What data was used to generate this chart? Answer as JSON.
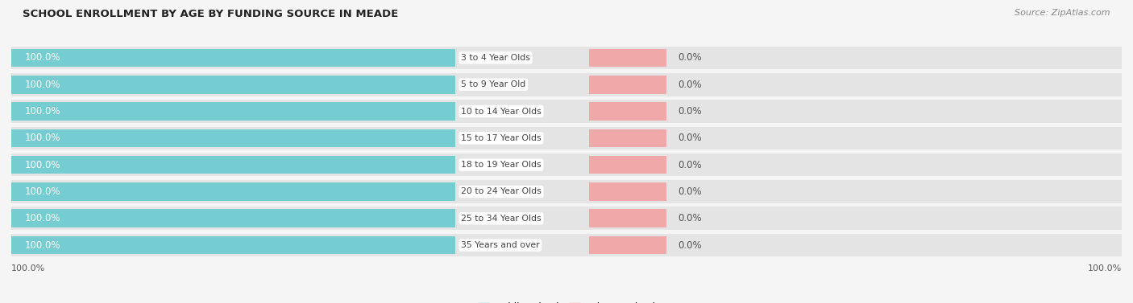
{
  "title": "SCHOOL ENROLLMENT BY AGE BY FUNDING SOURCE IN MEADE",
  "source": "Source: ZipAtlas.com",
  "categories": [
    "3 to 4 Year Olds",
    "5 to 9 Year Old",
    "10 to 14 Year Olds",
    "15 to 17 Year Olds",
    "18 to 19 Year Olds",
    "20 to 24 Year Olds",
    "25 to 34 Year Olds",
    "35 Years and over"
  ],
  "public_values": [
    100.0,
    100.0,
    100.0,
    100.0,
    100.0,
    100.0,
    100.0,
    100.0
  ],
  "private_values": [
    0.0,
    0.0,
    0.0,
    0.0,
    0.0,
    0.0,
    0.0,
    0.0
  ],
  "public_color": "#75cdd1",
  "private_color": "#f0a8a8",
  "row_bg_even": "#e8e8e8",
  "row_bg_odd": "#e8e8e8",
  "public_label_color": "#ffffff",
  "value_label_color": "#555555",
  "category_label_color": "#444444",
  "title_color": "#222222",
  "source_color": "#888888",
  "axis_label_color": "#555555",
  "fig_bg_color": "#f5f5f5",
  "legend_public_color": "#75cdd1",
  "legend_private_color": "#f0a8a8"
}
